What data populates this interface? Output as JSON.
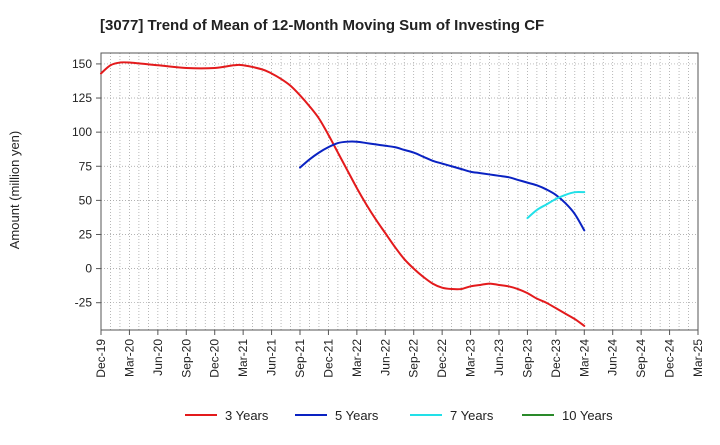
{
  "chart_data": {
    "type": "line",
    "title": "[3077]  Trend of Mean of 12-Month Moving Sum of Investing CF",
    "xlabel": "",
    "ylabel": "Amount (million yen)",
    "ylim": [
      -45,
      158
    ],
    "yticks": [
      150,
      125,
      100,
      75,
      50,
      25,
      0,
      -25
    ],
    "ytick_labels": [
      "150",
      "125",
      "100",
      "75",
      "50",
      "25",
      "0",
      "-25"
    ],
    "x_start": "Dec-19",
    "x_end": "Mar-25",
    "x_month_count": 63,
    "xtick_labels": [
      "Dec-19",
      "Mar-20",
      "Jun-20",
      "Sep-20",
      "Dec-20",
      "Mar-21",
      "Jun-21",
      "Sep-21",
      "Dec-21",
      "Mar-22",
      "Jun-22",
      "Sep-22",
      "Dec-22",
      "Mar-23",
      "Jun-23",
      "Sep-23",
      "Dec-23",
      "Mar-24",
      "Jun-24",
      "Sep-24",
      "Dec-24",
      "Mar-25"
    ],
    "grid": true,
    "legend_position": "bottom",
    "series": [
      {
        "name": "3 Years",
        "color": "#e31a1c",
        "x": [
          0,
          1,
          2,
          3,
          6,
          9,
          12,
          14,
          15,
          17,
          18,
          19,
          20,
          21,
          22,
          23,
          24,
          25,
          26,
          27,
          28,
          29,
          30,
          31,
          32,
          33,
          34,
          35,
          36,
          37,
          38,
          39,
          40,
          41,
          42,
          43,
          44,
          45,
          46,
          47,
          48,
          49,
          50,
          51
        ],
        "values": [
          143,
          149,
          151,
          151,
          149,
          147,
          147,
          149,
          149,
          146,
          143,
          139,
          134,
          127,
          119,
          110,
          98,
          85,
          72,
          59,
          47,
          36,
          26,
          16,
          7,
          0,
          -6,
          -11,
          -14,
          -15,
          -15,
          -13,
          -12,
          -11,
          -12,
          -13,
          -15,
          -18,
          -22,
          -25,
          -29,
          -33,
          -37,
          -42
        ]
      },
      {
        "name": "5 Years",
        "color": "#0a22c2",
        "x": [
          21,
          22,
          23,
          24,
          25,
          26,
          27,
          28,
          29,
          30,
          31,
          32,
          33,
          34,
          35,
          36,
          37,
          38,
          39,
          40,
          41,
          42,
          43,
          44,
          45,
          46,
          47,
          48,
          49,
          50,
          51
        ],
        "values": [
          74,
          80,
          85,
          89,
          92,
          93,
          93,
          92,
          91,
          90,
          89,
          87,
          85,
          82,
          79,
          77,
          75,
          73,
          71,
          70,
          69,
          68,
          67,
          65,
          63,
          61,
          58,
          54,
          48,
          40,
          28
        ]
      },
      {
        "name": "7 Years",
        "color": "#22e0e8",
        "x": [
          45,
          46,
          47,
          48,
          49,
          50,
          51
        ],
        "values": [
          37,
          43,
          47,
          51,
          54,
          56,
          56
        ]
      },
      {
        "name": "10 Years",
        "color": "#2a8a2a",
        "x": [],
        "values": []
      }
    ]
  }
}
